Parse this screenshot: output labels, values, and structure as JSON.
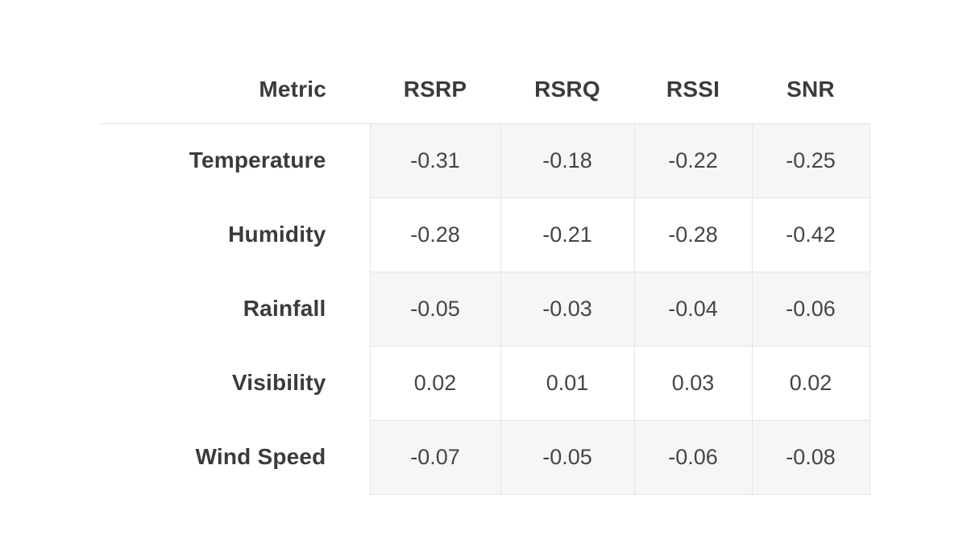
{
  "table": {
    "columns": [
      "Metric",
      "RSRP",
      "RSRQ",
      "RSSI",
      "SNR"
    ],
    "rows": [
      {
        "metric": "Temperature",
        "values": [
          "-0.31",
          "-0.18",
          "-0.22",
          "-0.25"
        ]
      },
      {
        "metric": "Humidity",
        "values": [
          "-0.28",
          "-0.21",
          "-0.28",
          "-0.42"
        ]
      },
      {
        "metric": "Rainfall",
        "values": [
          "-0.05",
          "-0.03",
          "-0.04",
          "-0.06"
        ]
      },
      {
        "metric": "Visibility",
        "values": [
          "0.02",
          "0.01",
          "0.03",
          "0.02"
        ]
      },
      {
        "metric": "Wind Speed",
        "values": [
          "-0.07",
          "-0.05",
          "-0.06",
          "-0.08"
        ]
      }
    ]
  },
  "chart_data": {
    "type": "table",
    "title": "",
    "columns": [
      "Metric",
      "RSRP",
      "RSRQ",
      "RSSI",
      "SNR"
    ],
    "rows": [
      [
        "Temperature",
        -0.31,
        -0.18,
        -0.22,
        -0.25
      ],
      [
        "Humidity",
        -0.28,
        -0.21,
        -0.28,
        -0.42
      ],
      [
        "Rainfall",
        -0.05,
        -0.03,
        -0.04,
        -0.06
      ],
      [
        "Visibility",
        0.02,
        0.01,
        0.03,
        0.02
      ],
      [
        "Wind Speed",
        -0.07,
        -0.05,
        -0.06,
        -0.08
      ]
    ],
    "layout": {
      "shaded_row_color": "#f6f6f4",
      "border_color": "#e4e4e2",
      "text_color": "#3b3b3b",
      "background": "#ffffff",
      "alternating_rows": true
    }
  }
}
